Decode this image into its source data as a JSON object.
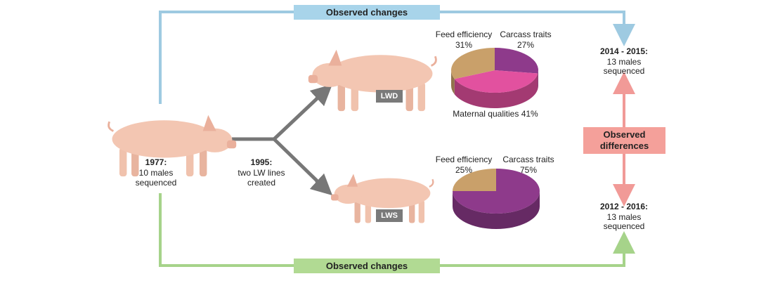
{
  "flows": {
    "top_label": "Observed changes",
    "bottom_label": "Observed changes",
    "differences_label": "Observed differences"
  },
  "origin": {
    "year": "1977:",
    "count": "10 males",
    "status": "sequenced"
  },
  "split": {
    "year": "1995:",
    "line1": "two LW lines",
    "line2": "created"
  },
  "lines": [
    {
      "name": "LWD",
      "period": "2014 - 2015:",
      "count": "13 males",
      "status": "sequenced",
      "pie": {
        "slices": [
          {
            "label": "Carcass traits",
            "value": 27,
            "value_label": "27%",
            "color": "#8e3a8b"
          },
          {
            "label": "Maternal qualities",
            "value": 41,
            "value_label": "41%",
            "color": "#e2519f"
          },
          {
            "label": "Feed efficiency",
            "value": 31,
            "value_label": "31%",
            "color": "#c9a06a"
          }
        ]
      }
    },
    {
      "name": "LWS",
      "period": "2012 - 2016:",
      "count": "13 males",
      "status": "sequenced",
      "pie": {
        "slices": [
          {
            "label": "Carcass traits",
            "value": 75,
            "value_label": "75%",
            "color": "#8e3a8b"
          },
          {
            "label": "Feed efficiency",
            "value": 25,
            "value_label": "25%",
            "color": "#c9a06a"
          }
        ]
      }
    }
  ]
}
